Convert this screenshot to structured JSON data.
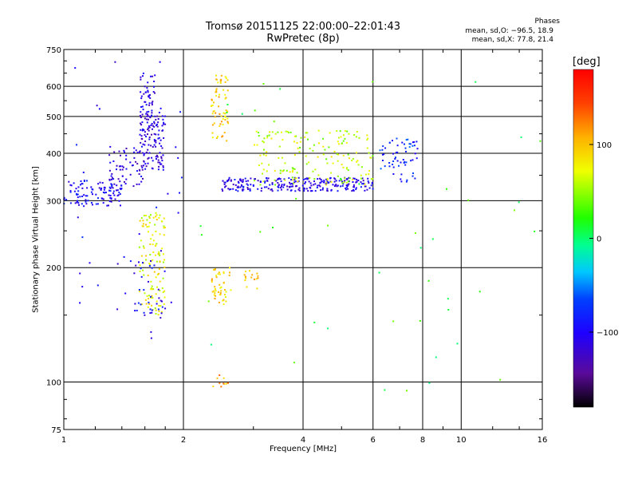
{
  "chart_data": {
    "type": "scatter",
    "title": "Tromsø 20151125 22:00:00–22:01:43",
    "subtitle": "RwPretec (8p)",
    "xlabel": "Frequency [MHz]",
    "ylabel": "Stationary phase Virtual Height [km]",
    "x_scale": "log",
    "y_scale": "log",
    "xlim": [
      1,
      16
    ],
    "ylim": [
      75,
      750
    ],
    "x_ticks": [
      "1",
      "2",
      "4",
      "6",
      "8",
      "10",
      "16"
    ],
    "y_ticks": [
      "75",
      "100",
      "200",
      "300",
      "400",
      "500",
      "600",
      "750"
    ],
    "grid": true,
    "phase_stats": {
      "header": "Phases",
      "o_line": "mean, sd,O: −96.5, 18.9",
      "x_line": "mean, sd,X:  77.8, 21.4"
    },
    "colorbar": {
      "unit_label": "[deg]",
      "ticks": [
        "100",
        "0",
        "−100"
      ],
      "tick_values": [
        100,
        0,
        -100
      ],
      "range": [
        -180,
        180
      ]
    },
    "clusters": [
      {
        "x": [
          1.0,
          1.4
        ],
        "y": [
          290,
          340
        ],
        "phase": -100,
        "n": 110
      },
      {
        "x": [
          1.3,
          1.6
        ],
        "y": [
          330,
          420
        ],
        "phase": -110,
        "n": 60
      },
      {
        "x": [
          1.55,
          1.8
        ],
        "y": [
          360,
          520
        ],
        "phase": -115,
        "n": 120
      },
      {
        "x": [
          1.55,
          1.7
        ],
        "y": [
          470,
          650
        ],
        "phase": -110,
        "n": 50
      },
      {
        "x": [
          2.35,
          2.6
        ],
        "y": [
          430,
          650
        ],
        "phase": 95,
        "n": 65
      },
      {
        "x": [
          2.5,
          6.0
        ],
        "y": [
          318,
          345
        ],
        "phase": -105,
        "n": 260
      },
      {
        "x": [
          3.0,
          6.0
        ],
        "y": [
          330,
          460
        ],
        "phase": 60,
        "n": 170
      },
      {
        "x": [
          6.2,
          7.8
        ],
        "y": [
          335,
          440
        ],
        "phase": -80,
        "n": 60
      },
      {
        "x": [
          1.55,
          1.8
        ],
        "y": [
          150,
          280
        ],
        "phase": 75,
        "n": 120
      },
      {
        "x": [
          1.5,
          1.8
        ],
        "y": [
          145,
          210
        ],
        "phase": -100,
        "n": 35
      },
      {
        "x": [
          2.35,
          2.65
        ],
        "y": [
          160,
          200
        ],
        "phase": 90,
        "n": 45
      },
      {
        "x": [
          2.85,
          3.1
        ],
        "y": [
          175,
          200
        ],
        "phase": 95,
        "n": 15
      },
      {
        "x": [
          2.35,
          2.6
        ],
        "y": [
          97,
          105
        ],
        "phase": 110,
        "n": 10
      },
      {
        "x": [
          1.0,
          2.0
        ],
        "y": [
          130,
          700
        ],
        "phase": -100,
        "n": 40
      },
      {
        "x": [
          2.0,
          16.0
        ],
        "y": [
          90,
          620
        ],
        "phase": 20,
        "n": 45
      }
    ]
  }
}
